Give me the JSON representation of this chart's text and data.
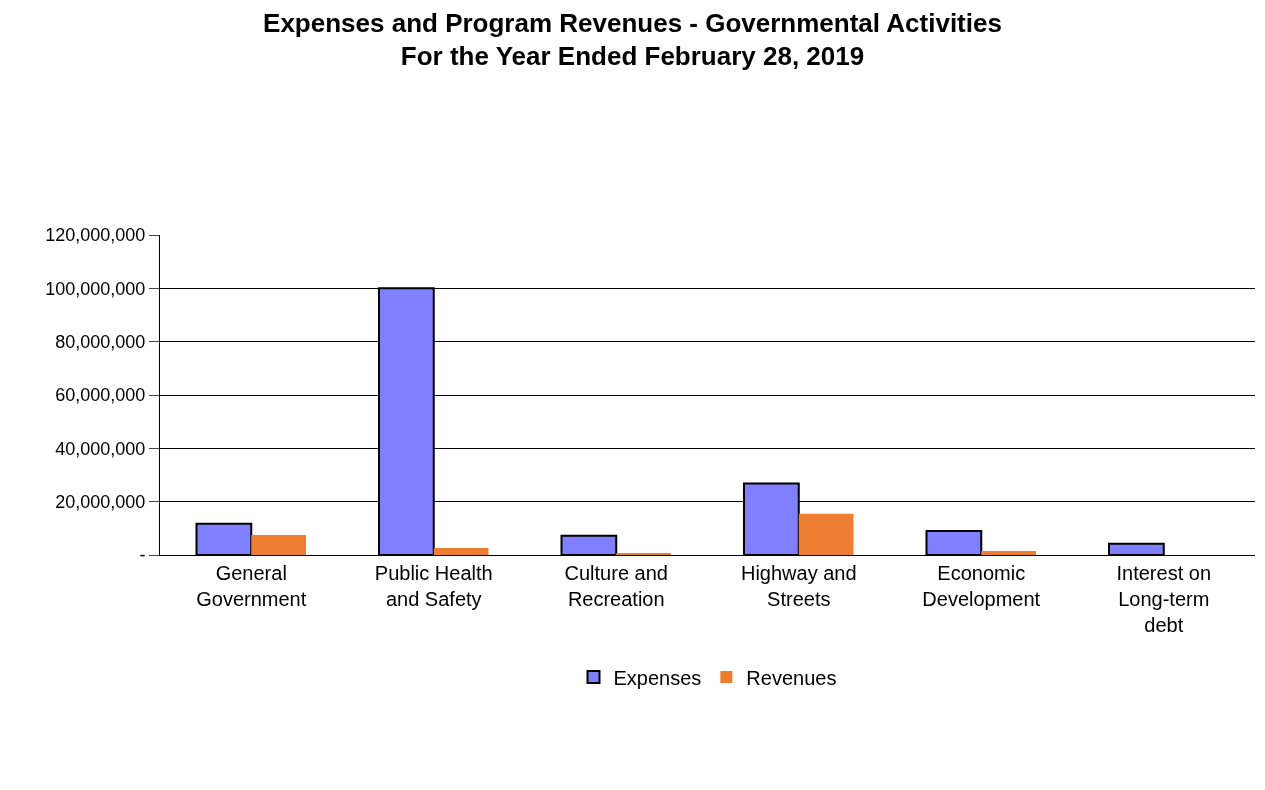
{
  "chart_data": {
    "type": "bar",
    "title": "Expenses and Program Revenues - Governmental Activities\nFor the Year Ended February 28, 2019",
    "categories": [
      "General Government",
      "Public Health and Safety",
      "Culture and Recreation",
      "Highway and Streets",
      "Economic Development",
      "Interest on Long-term debt"
    ],
    "series": [
      {
        "name": "Expenses",
        "color": "#8080ff",
        "values": [
          11700000,
          100000000,
          7200000,
          26800000,
          9000000,
          4200000
        ]
      },
      {
        "name": "Revenues",
        "color": "#ed7d31",
        "values": [
          7500000,
          2600000,
          500000,
          15500000,
          1500000,
          null
        ]
      }
    ],
    "ylim": [
      0,
      120000000
    ],
    "yticks": [
      {
        "value": 0,
        "label": "-"
      },
      {
        "value": 20000000,
        "label": "20,000,000"
      },
      {
        "value": 40000000,
        "label": "40,000,000"
      },
      {
        "value": 60000000,
        "label": "60,000,000"
      },
      {
        "value": 80000000,
        "label": "80,000,000"
      },
      {
        "value": 100000000,
        "label": "100,000,000"
      },
      {
        "value": 120000000,
        "label": "120,000,000"
      }
    ],
    "grid": "y",
    "legend": "bottom"
  }
}
